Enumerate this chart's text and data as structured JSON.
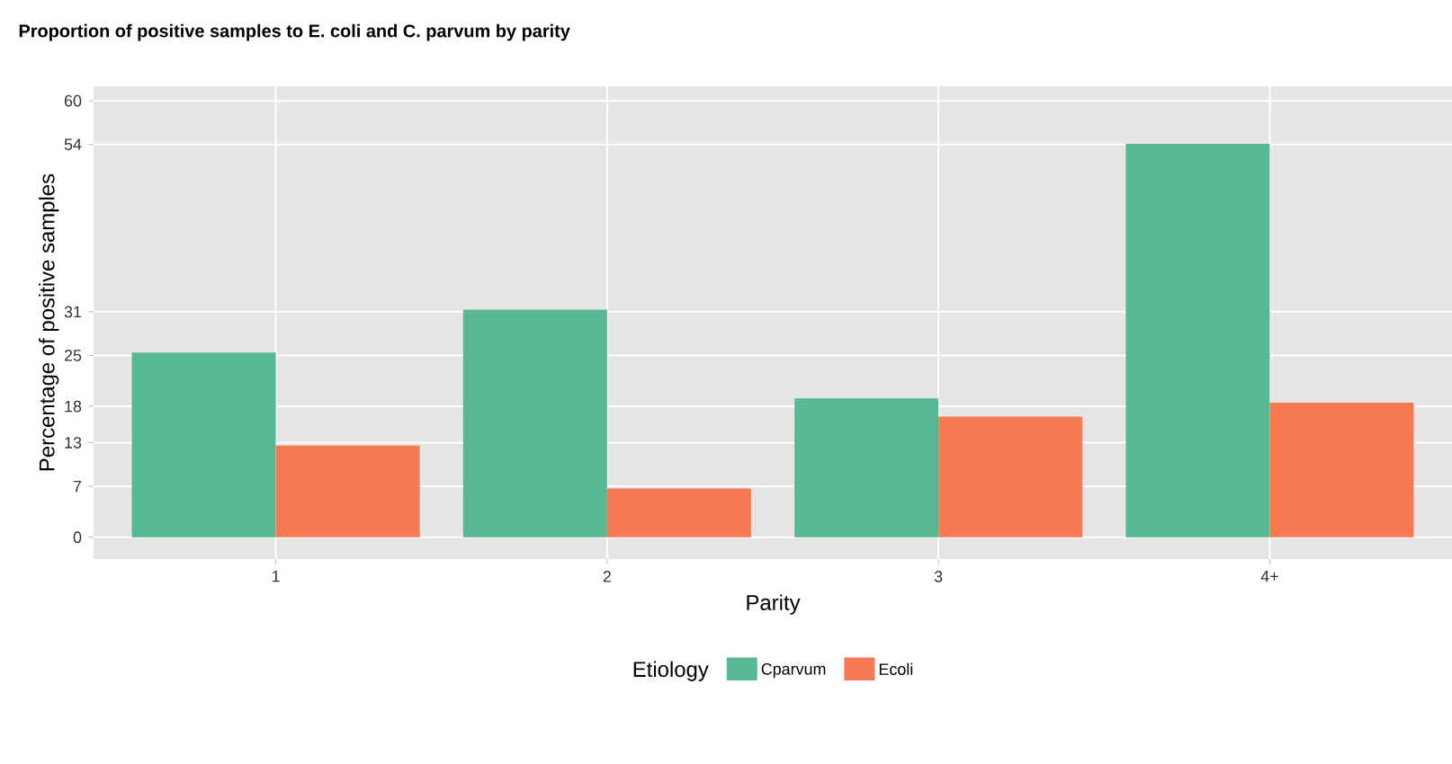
{
  "chart_data": {
    "type": "bar",
    "title": "Proportion of positive samples to E. coli and C. parvum by parity",
    "xlabel": "Parity",
    "ylabel": "Percentage of positive samples",
    "legend_title": "Etiology",
    "categories": [
      "1",
      "2",
      "3",
      "4+"
    ],
    "series": [
      {
        "name": "Cparvum",
        "color": "#57b994",
        "values": [
          25.4,
          31.3,
          19.1,
          54.1
        ]
      },
      {
        "name": "Ecoli",
        "color": "#f77a52",
        "values": [
          12.6,
          6.7,
          16.6,
          18.5
        ]
      }
    ],
    "ylim": [
      -3,
      62
    ],
    "yticks": [
      0,
      7,
      13,
      18,
      25,
      31,
      54,
      60
    ],
    "grid": true,
    "legend": "bottom"
  }
}
